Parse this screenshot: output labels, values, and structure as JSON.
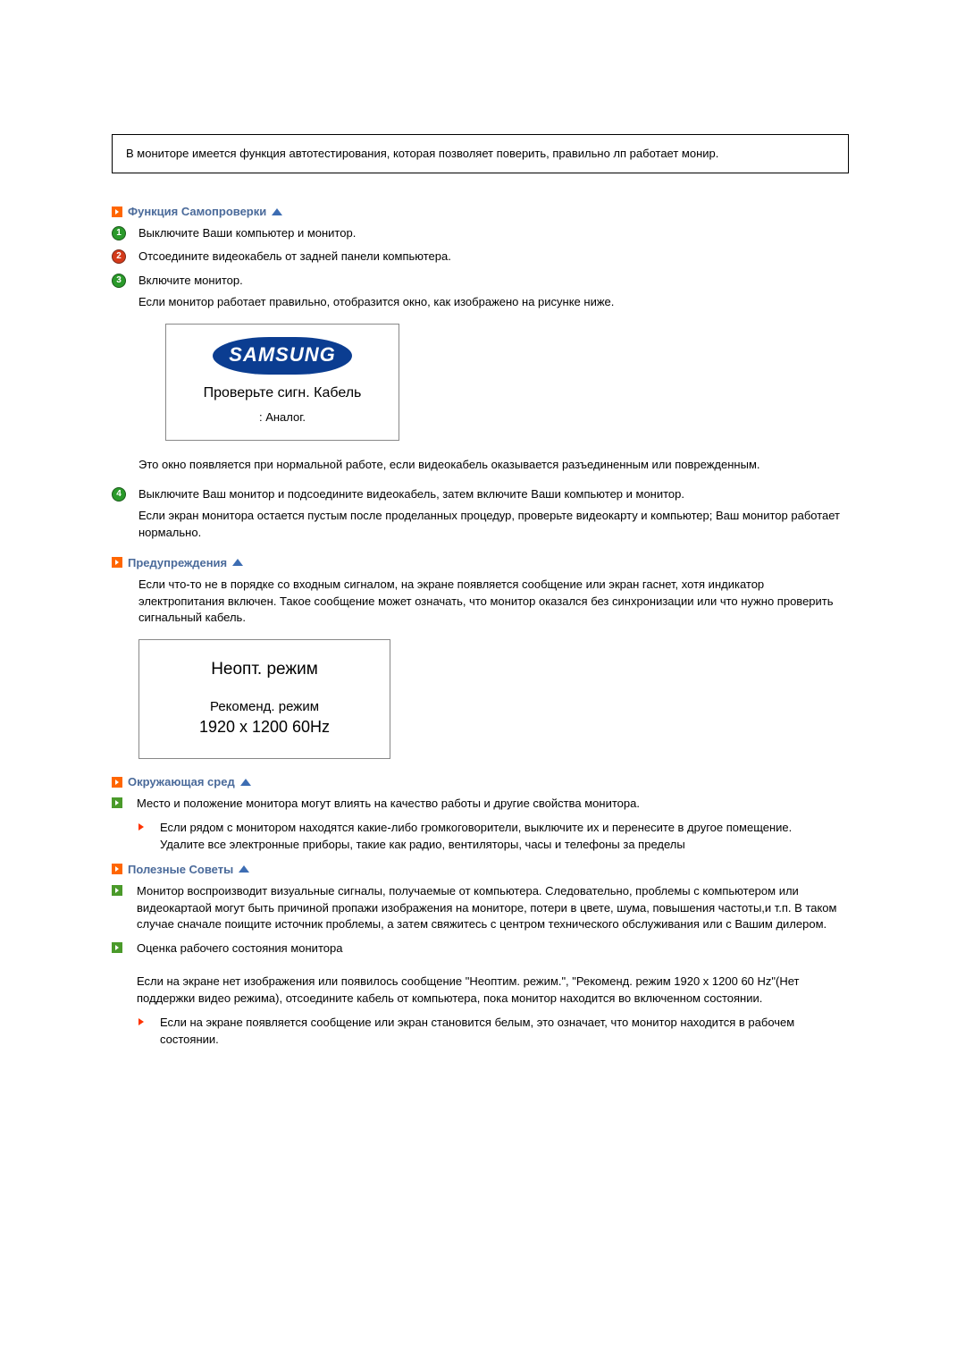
{
  "info_box": "В мониторе имеется функция автотестирования, которая позволяет поверить, правильно лп работает монир.",
  "section1": {
    "title": "Функция Самопроверки",
    "step1": "Выключите Ваши компьютер и монитор.",
    "step2": "Отсоедините видеокабель от задней панели компьютера.",
    "step3": "Включите монитор.",
    "after3": "Если монитор работает правильно, отобразится окно, как изображено на рисунке ниже.",
    "fig1_logo": "SAMSUNG",
    "fig1_line1": "Проверьте сигн. Кабель",
    "fig1_line2": ":    Аналог.",
    "after_fig1": "Это окно появляется при нормальной работе, если видеокабель оказывается разъединенным или поврежденным.",
    "step4": "Выключите Ваш монитор и подсоедините видеокабель, затем включите Ваши компьютер и монитор.",
    "after4": "Если экран монитора остается пустым после проделанных процедур, проверьте видеокарту и компьютер; Ваш монитор работает нормально."
  },
  "section2": {
    "title": "Предупреждения",
    "body": "Если что-то не в порядке со входным сигналом, на экране появляется сообщение или экран гаснет, хотя индикатор электропитания включен. Такое сообщение может означать, что монитор оказался без синхронизации или что нужно проверить сигнальный кабель.",
    "fig2_line1": "Неопт.   режим",
    "fig2_line2": "Рекоменд. режим",
    "fig2_line3": "1920 x 1200  60Hz"
  },
  "section3": {
    "title": "Окружающая сред",
    "g1": "Место и положение монитора могут влиять на качество работы и другие свойства монитора.",
    "r1a": "Если рядом с монитором находятся какие-либо громкоговорители, выключите их и перенесите в другое помещение.",
    "r1b": "Удалите все электронные приборы, такие как радио, вентиляторы, часы и телефоны за пределы"
  },
  "section4": {
    "title": "Полезные Советы",
    "g1": "Монитор воспроизводит визуальные сигналы, получаемые от компьютера. Следовательно, проблемы с компьютером или видеокартаой могут быть причиной пропажи изображения на мониторе, потери в цвете, шума, повышения частоты,и т.п. В таком случае сначале поищите источник проблемы, а затем свяжитесь с центром технического обслуживания или с Вашим дилером.",
    "g2": "Оценка рабочего состояния монитора",
    "g2b": "Если на экране нет изображения или появилось сообщение \"Неоптим. режим.\", \"Рекоменд. режим 1920 x 1200 60 Hz\"(Нет поддержки видео режима), отсоедините кабель от компьютера, пока монитор находится во включенном состоянии.",
    "r1": "Если на экране появляется сообщение или экран становится белым, это означает, что монитор находится в рабочем состоянии."
  }
}
